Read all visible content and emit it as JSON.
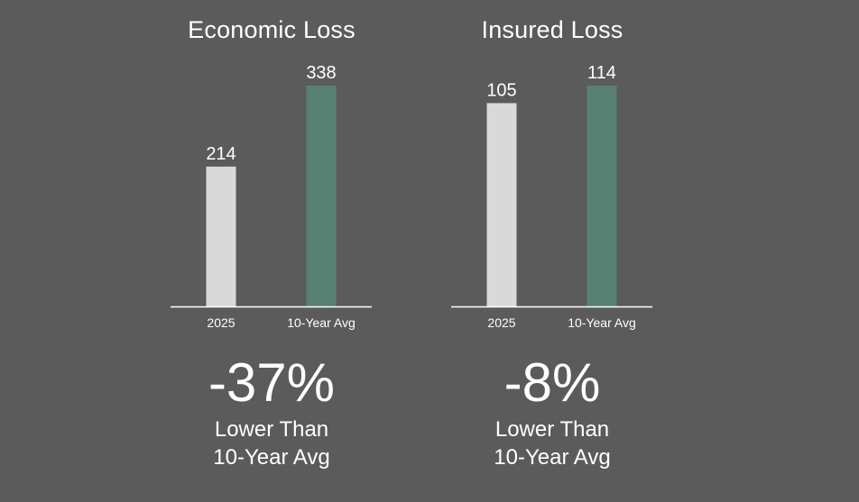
{
  "colors": {
    "background": "#5b5b5b",
    "current_bar": "#d9d9d9",
    "average_bar": "#588174",
    "axis": "#ffffff",
    "text": "#ffffff"
  },
  "chart_data": [
    {
      "type": "bar",
      "title": "Economic Loss",
      "categories": [
        "2025",
        "10-Year Avg"
      ],
      "values": [
        214,
        338
      ],
      "ylim": [
        0,
        400
      ],
      "grid": false,
      "summary": {
        "change": "-37%",
        "line1": "Lower Than",
        "line2": "10-Year Avg"
      }
    },
    {
      "type": "bar",
      "title": "Insured Loss",
      "categories": [
        "2025",
        "10-Year Avg"
      ],
      "values": [
        105,
        114
      ],
      "ylim": [
        0,
        135
      ],
      "grid": false,
      "summary": {
        "change": "-8%",
        "line1": "Lower Than",
        "line2": "10-Year Avg"
      }
    }
  ]
}
